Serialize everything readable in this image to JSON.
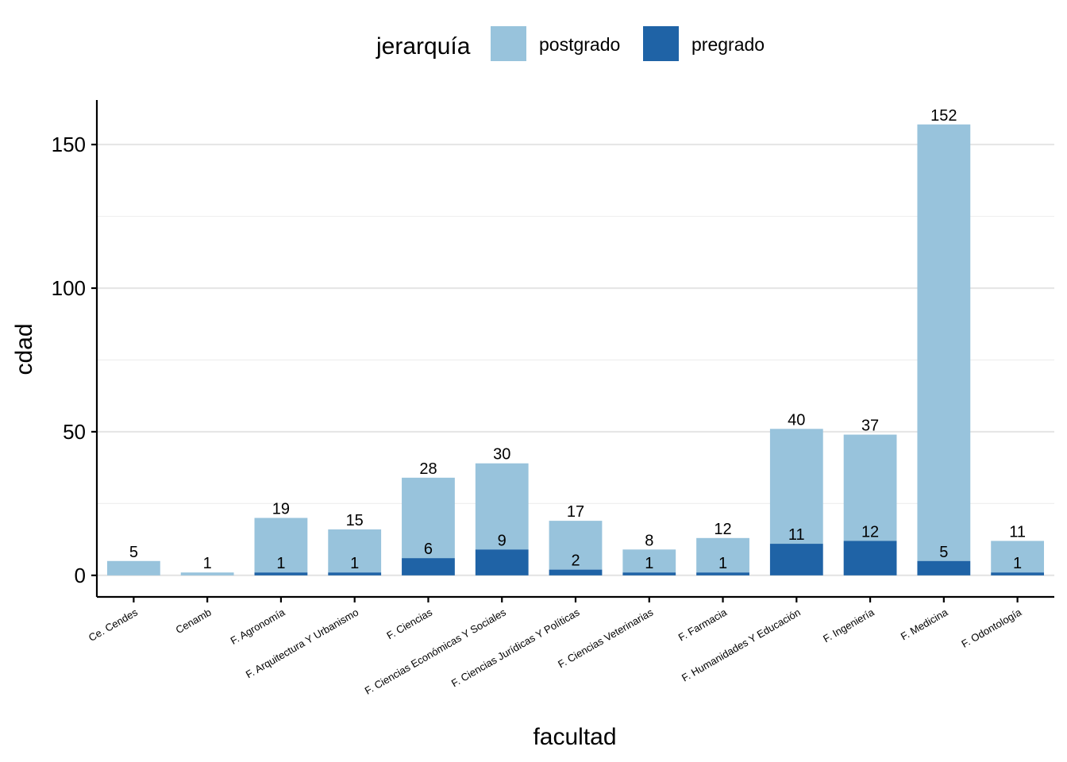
{
  "chart_data": {
    "type": "bar",
    "stacked": true,
    "xlabel": "facultad",
    "ylabel": "cdad",
    "ylim": [
      -7.5,
      165.5
    ],
    "yticks": [
      0,
      50,
      100,
      150
    ],
    "grid": "horizontal",
    "legend": {
      "title": "jerarquía",
      "position": "top"
    },
    "categories": [
      "Ce.  Cendes",
      "Cenamb",
      "F. Agronomía",
      "F. Arquitectura Y Urbanismo",
      "F. Ciencias",
      "F. Ciencias Económicas Y Sociales",
      "F. Ciencias Jurídicas Y Políticas",
      "F. Ciencias Veterinarias",
      "F. Farmacia",
      "F. Humanidades Y Educación",
      "F. Ingeniería",
      "F. Medicina",
      "F. Odontología"
    ],
    "series": [
      {
        "name": "pregrado",
        "color": "#1f63a6",
        "values": [
          0,
          0,
          1,
          1,
          6,
          9,
          2,
          1,
          1,
          11,
          12,
          5,
          1
        ],
        "labels": [
          "",
          "",
          "1",
          "1",
          "6",
          "9",
          "2",
          "1",
          "1",
          "11",
          "12",
          "5",
          "1"
        ]
      },
      {
        "name": "postgrado",
        "color": "#98c3dc",
        "values": [
          5,
          1,
          19,
          15,
          28,
          30,
          17,
          8,
          12,
          40,
          37,
          152,
          11
        ],
        "labels": [
          "5",
          "1",
          "19",
          "15",
          "28",
          "30",
          "17",
          "8",
          "12",
          "40",
          "37",
          "152",
          "11"
        ]
      }
    ],
    "legend_order": [
      "postgrado",
      "pregrado"
    ]
  }
}
